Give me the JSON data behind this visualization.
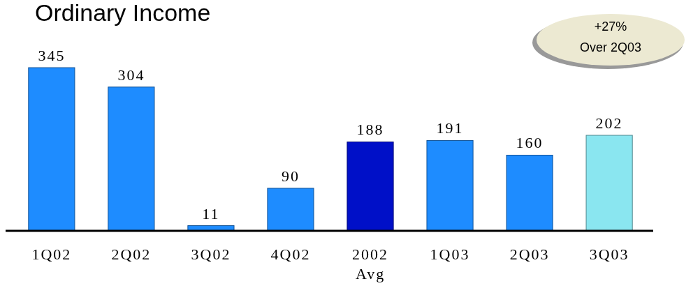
{
  "chart_data": {
    "type": "bar",
    "title": "Ordinary Income",
    "categories": [
      "1Q02",
      "2Q02",
      "3Q02",
      "4Q02",
      "2002 Avg",
      "1Q03",
      "2Q03",
      "3Q03"
    ],
    "values": [
      345,
      304,
      11,
      90,
      188,
      191,
      160,
      202
    ],
    "colors": [
      "#1e8cff",
      "#1e8cff",
      "#1e8cff",
      "#1e8cff",
      "#0010c8",
      "#1e8cff",
      "#1e8cff",
      "#8ae6f0"
    ],
    "data_labels": true,
    "annotations": [
      "+27%",
      "Over 2Q03"
    ]
  }
}
